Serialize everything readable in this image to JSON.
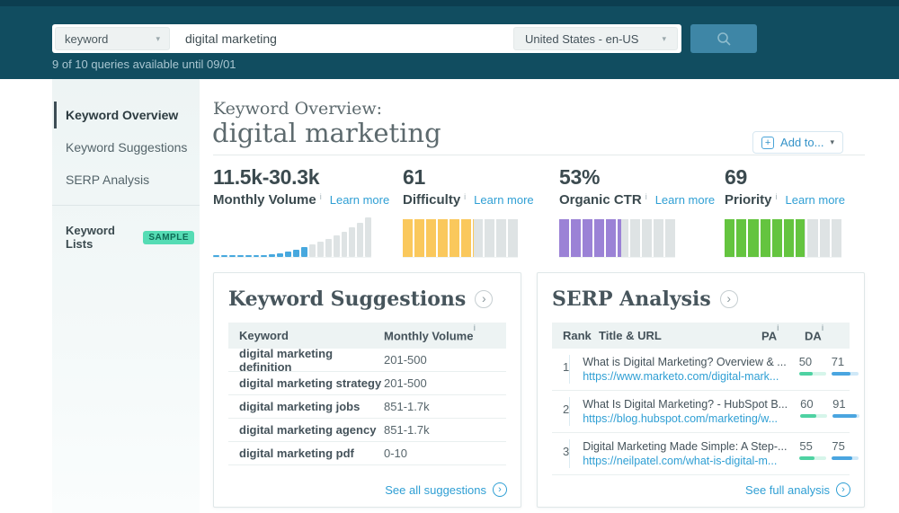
{
  "colors": {
    "topbar_bg": "#114d60",
    "topbar_strip": "#0c3e50",
    "search_button_bg": "#3e86a6",
    "accent_blue": "#2f9fd4",
    "volume_blue": "#47a8de",
    "difficulty_yellow": "#fac85c",
    "ctr_purple": "#9b82d6",
    "priority_green": "#64c43f",
    "bar_gray": "#dee3e4",
    "pa_fill": "#4ed2a2",
    "da_fill": "#4aa5e0",
    "badge_bg": "#55dcb4"
  },
  "icons": {
    "caret_down": "▾",
    "info": "i",
    "chevron_right": "›",
    "plus": "+"
  },
  "topbar": {
    "scope_value": "keyword",
    "query_value": "digital marketing",
    "locale_value": "United States - en-US",
    "queries_note": "9 of 10 queries available until 09/01"
  },
  "sidebar": {
    "items": [
      {
        "label": "Keyword Overview",
        "active": true
      },
      {
        "label": "Keyword Suggestions",
        "active": false
      },
      {
        "label": "SERP Analysis",
        "active": false
      }
    ],
    "lists_label": "Keyword Lists",
    "lists_badge": "SAMPLE"
  },
  "header": {
    "eyebrow": "Keyword Overview:",
    "title": "digital marketing",
    "add_to_label": "Add to..."
  },
  "strings": {
    "learn_more": "Learn more"
  },
  "metrics": [
    {
      "value": "11.5k-30.3k",
      "label": "Monthly Volume",
      "chart": {
        "type": "histogram",
        "bar_color": "#47a8de",
        "gray_color": "#dee3e4",
        "heights": [
          2,
          2,
          2,
          2,
          2,
          2,
          2,
          3,
          4,
          6,
          8,
          11,
          14,
          17,
          20,
          24,
          28,
          33,
          38,
          44
        ],
        "highlight_count": 12
      }
    },
    {
      "value": "61",
      "label": "Difficulty",
      "chart": {
        "type": "segments",
        "segments": 10,
        "percent": 61,
        "fill_color": "#fac85c"
      }
    },
    {
      "value": "53%",
      "label": "Organic CTR",
      "chart": {
        "type": "segments",
        "segments": 10,
        "percent": 53,
        "fill_color": "#9b82d6"
      }
    },
    {
      "value": "69",
      "label": "Priority",
      "chart": {
        "type": "segments",
        "segments": 10,
        "percent": 69,
        "fill_color": "#64c43f"
      }
    }
  ],
  "suggestions": {
    "title": "Keyword Suggestions",
    "columns": {
      "keyword": "Keyword",
      "volume": "Monthly Volume"
    },
    "rows": [
      {
        "keyword": "digital marketing definition",
        "volume": "201-500"
      },
      {
        "keyword": "digital marketing strategy",
        "volume": "201-500"
      },
      {
        "keyword": "digital marketing jobs",
        "volume": "851-1.7k"
      },
      {
        "keyword": "digital marketing agency",
        "volume": "851-1.7k"
      },
      {
        "keyword": "digital marketing pdf",
        "volume": "0-10"
      }
    ],
    "footer_link": "See all suggestions"
  },
  "serp": {
    "title": "SERP Analysis",
    "columns": {
      "rank": "Rank",
      "title": "Title & URL",
      "pa": "PA",
      "da": "DA"
    },
    "rows": [
      {
        "rank": "1",
        "title": "What is Digital Marketing? Overview & ...",
        "url": "https://www.marketo.com/digital-mark...",
        "pa": 50,
        "da": 71
      },
      {
        "rank": "2",
        "title": "What Is Digital Marketing? - HubSpot B...",
        "url": "https://blog.hubspot.com/marketing/w...",
        "pa": 60,
        "da": 91
      },
      {
        "rank": "3",
        "title": "Digital Marketing Made Simple: A Step-...",
        "url": "https://neilpatel.com/what-is-digital-m...",
        "pa": 55,
        "da": 75
      }
    ],
    "footer_link": "See full analysis"
  }
}
